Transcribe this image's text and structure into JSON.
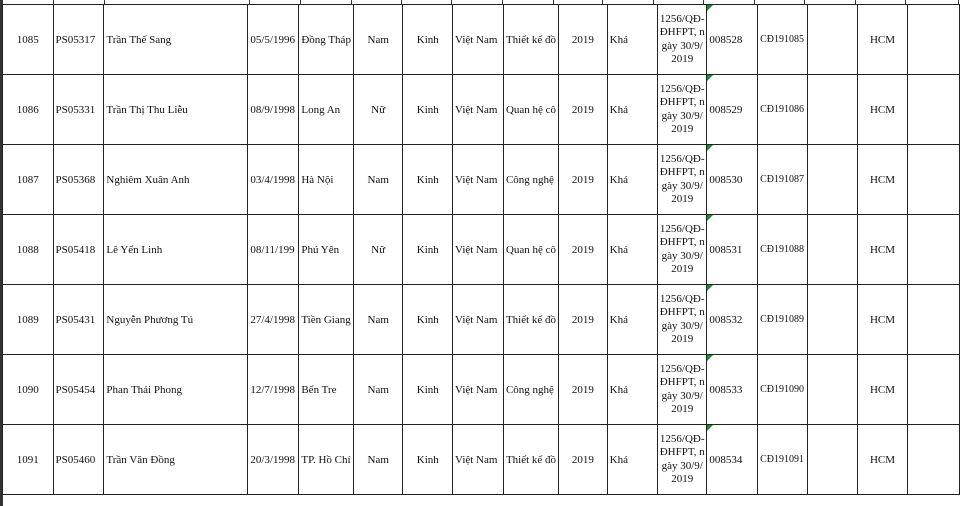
{
  "rows": [
    {
      "stt": "1085",
      "code": "PS05317",
      "name": "Trần Thế Sang",
      "dob": "05/5/1996",
      "place": "Đồng Tháp",
      "gender": "Nam",
      "ethnic": "Kinh",
      "nation": "Việt Nam",
      "major": "Thiết kế đồ",
      "year": "2019",
      "rank": "Khá",
      "decision": "1256/QĐ-ĐHFPT, ngày 30/9/2019",
      "serial": "008528",
      "reg": "CĐ191085",
      "c15": "",
      "campus": "HCM",
      "c17": ""
    },
    {
      "stt": "1086",
      "code": "PS05331",
      "name": "Trần Thị Thu Liễu",
      "dob": "08/9/1998",
      "place": "Long An",
      "gender": "Nữ",
      "ethnic": "Kinh",
      "nation": "Việt Nam",
      "major": "Quan hệ cô",
      "year": "2019",
      "rank": "Khá",
      "decision": "1256/QĐ-ĐHFPT, ngày 30/9/2019",
      "serial": "008529",
      "reg": "CĐ191086",
      "c15": "",
      "campus": "HCM",
      "c17": ""
    },
    {
      "stt": "1087",
      "code": "PS05368",
      "name": "Nghiêm Xuân Anh",
      "dob": "03/4/1998",
      "place": "Hà Nội",
      "gender": "Nam",
      "ethnic": "Kinh",
      "nation": "Việt Nam",
      "major": "Công nghệ",
      "year": "2019",
      "rank": "Khá",
      "decision": "1256/QĐ-ĐHFPT, ngày 30/9/2019",
      "serial": "008530",
      "reg": "CĐ191087",
      "c15": "",
      "campus": "HCM",
      "c17": ""
    },
    {
      "stt": "1088",
      "code": "PS05418",
      "name": "Lê Yến Linh",
      "dob": "08/11/199",
      "place": "Phú Yên",
      "gender": "Nữ",
      "ethnic": "Kinh",
      "nation": "Việt Nam",
      "major": "Quan hệ cô",
      "year": "2019",
      "rank": "Khá",
      "decision": "1256/QĐ-ĐHFPT, ngày 30/9/2019",
      "serial": "008531",
      "reg": "CĐ191088",
      "c15": "",
      "campus": "HCM",
      "c17": ""
    },
    {
      "stt": "1089",
      "code": "PS05431",
      "name": "Nguyễn Phương Tú",
      "dob": "27/4/1998",
      "place": "Tiền Giang",
      "gender": "Nam",
      "ethnic": "Kinh",
      "nation": "Việt Nam",
      "major": "Thiết kế đồ",
      "year": "2019",
      "rank": "Khá",
      "decision": "1256/QĐ-ĐHFPT, ngày 30/9/2019",
      "serial": "008532",
      "reg": "CĐ191089",
      "c15": "",
      "campus": "HCM",
      "c17": ""
    },
    {
      "stt": "1090",
      "code": "PS05454",
      "name": "Phan Thái Phong",
      "dob": "12/7/1998",
      "place": "Bến Tre",
      "gender": "Nam",
      "ethnic": "Kinh",
      "nation": "Việt Nam",
      "major": "Công nghệ",
      "year": "2019",
      "rank": "Khá",
      "decision": "1256/QĐ-ĐHFPT, ngày 30/9/2019",
      "serial": "008533",
      "reg": "CĐ191090",
      "c15": "",
      "campus": "HCM",
      "c17": ""
    },
    {
      "stt": "1091",
      "code": "PS05460",
      "name": "Trần Văn Đồng",
      "dob": "20/3/1998",
      "place": "TP. Hồ Chí",
      "gender": "Nam",
      "ethnic": "Kinh",
      "nation": "Việt Nam",
      "major": "Thiết kế đồ",
      "year": "2019",
      "rank": "Khá",
      "decision": "1256/QĐ-ĐHFPT, ngày 30/9/2019",
      "serial": "008534",
      "reg": "CĐ191091",
      "c15": "",
      "campus": "HCM",
      "c17": ""
    }
  ],
  "colors": {
    "grid": "#222222",
    "comment_marker": "#1a8a2a"
  }
}
